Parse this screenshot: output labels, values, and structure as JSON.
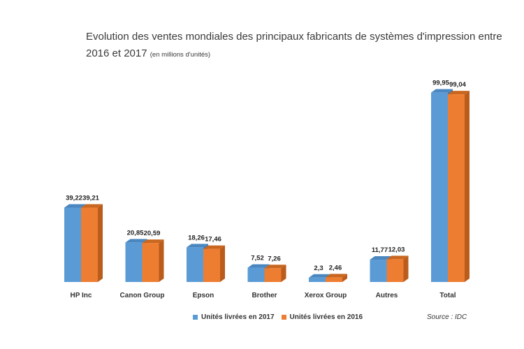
{
  "title": {
    "line1": "Evolution des ventes mondiales des principaux fabricants de systèmes d'impression entre",
    "line2": "2016 et 2017",
    "unit_note": "(en millions d'unités)"
  },
  "source": "Source : IDC",
  "colors": {
    "series_2017": "#5b9bd5",
    "series_2016": "#ed7d31"
  },
  "chart_data": {
    "type": "bar",
    "categories": [
      "HP Inc",
      "Canon Group",
      "Epson",
      "Brother",
      "Xerox Group",
      "Autres",
      "Total"
    ],
    "series": [
      {
        "name": "Unités livrées en 2017",
        "values": [
          39.22,
          20.85,
          18.26,
          7.52,
          2.3,
          11.77,
          99.95
        ],
        "labels": [
          "39,22",
          "20,85",
          "18,26",
          "7,52",
          "2,3",
          "11,77",
          "99,95"
        ]
      },
      {
        "name": "Unités livrées en 2016",
        "values": [
          39.21,
          20.59,
          17.46,
          7.26,
          2.46,
          12.03,
          99.04
        ],
        "labels": [
          "39,21",
          "20,59",
          "17,46",
          "7,26",
          "2,46",
          "12,03",
          "99,04"
        ]
      }
    ],
    "ylim": [
      0,
      100
    ],
    "grid": false,
    "legend_position": "bottom",
    "style": "3d-clustered-column"
  }
}
